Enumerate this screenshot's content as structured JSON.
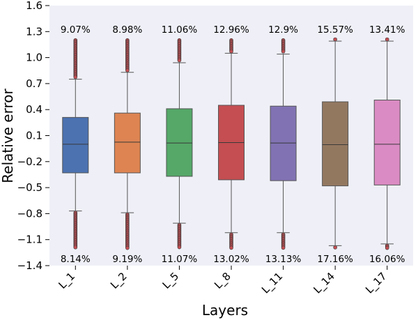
{
  "chart_data": {
    "type": "box",
    "xlabel": "Layers",
    "ylabel": "Relative error",
    "ylim": [
      -1.4,
      1.6
    ],
    "yticks": [
      1.6,
      1.3,
      1.0,
      0.7,
      0.4,
      0.1,
      -0.2,
      -0.5,
      -0.8,
      -1.1,
      -1.4
    ],
    "ytick_labels": [
      "1.6",
      "1.3",
      "1.0",
      "0.7",
      "0.4",
      "0.1",
      "−0.2",
      "−0.5",
      "−0.8",
      "−1.1",
      "−1.4"
    ],
    "grid": false,
    "background": "#eff0f7",
    "outlier_color": "#c44e52",
    "categories": [
      "L_1",
      "L_2",
      "L_5",
      "L_8",
      "L_11",
      "L_14",
      "L_17"
    ],
    "colors": [
      "#4c72b0",
      "#dd8452",
      "#55a868",
      "#c44e52",
      "#8172b3",
      "#937860",
      "#da8bc3"
    ],
    "boxes": [
      {
        "q1": -0.33,
        "median": 0.0,
        "q3": 0.31,
        "whisker_low": -0.77,
        "whisker_high": 0.75,
        "outlier_low": -1.2,
        "outlier_high": 1.2
      },
      {
        "q1": -0.33,
        "median": 0.025,
        "q3": 0.36,
        "whisker_low": -0.79,
        "whisker_high": 0.83,
        "outlier_low": -1.2,
        "outlier_high": 1.2
      },
      {
        "q1": -0.37,
        "median": 0.015,
        "q3": 0.41,
        "whisker_low": -0.91,
        "whisker_high": 0.94,
        "outlier_low": -1.2,
        "outlier_high": 1.2
      },
      {
        "q1": -0.41,
        "median": 0.02,
        "q3": 0.45,
        "whisker_low": -1.02,
        "whisker_high": 1.05,
        "outlier_low": -1.2,
        "outlier_high": 1.2
      },
      {
        "q1": -0.42,
        "median": 0.015,
        "q3": 0.44,
        "whisker_low": -1.02,
        "whisker_high": 1.04,
        "outlier_low": -1.2,
        "outlier_high": 1.2
      },
      {
        "q1": -0.48,
        "median": -0.005,
        "q3": 0.49,
        "whisker_low": -1.17,
        "whisker_high": 1.19,
        "outlier_low": -1.2,
        "outlier_high": 1.2
      },
      {
        "q1": -0.47,
        "median": 0.0,
        "q3": 0.51,
        "whisker_low": -1.15,
        "whisker_high": 1.19,
        "outlier_low": -1.2,
        "outlier_high": 1.2
      }
    ],
    "top_annotations": [
      "9.07%",
      "8.98%",
      "11.06%",
      "12.96%",
      "12.9%",
      "15.57%",
      "13.41%"
    ],
    "bottom_annotations": [
      "8.14%",
      "9.19%",
      "11.07%",
      "13.02%",
      "13.13%",
      "17.16%",
      "16.06%"
    ]
  }
}
